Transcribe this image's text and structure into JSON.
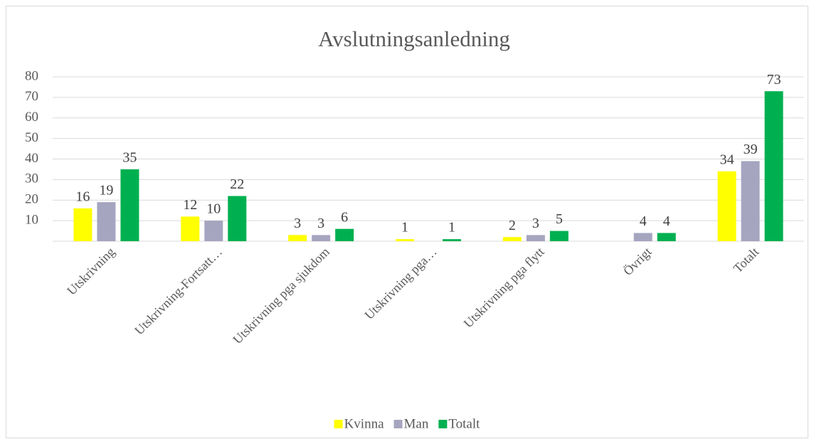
{
  "chart_data": {
    "type": "bar",
    "title": "Avslutningsanledning",
    "categories": [
      "Utskrivning",
      "Utskrivning-Fortsatt…",
      "Utskrivning pga sjukdom",
      "Utskrivning pga…",
      "Utskrivning pga flytt",
      "Övrigt",
      "Totalt"
    ],
    "series": [
      {
        "name": "Kvinna",
        "color": "#ffff00",
        "values": [
          16,
          12,
          3,
          1,
          2,
          null,
          34
        ]
      },
      {
        "name": "Man",
        "color": "#a5a5c0",
        "values": [
          19,
          10,
          3,
          null,
          3,
          4,
          39
        ]
      },
      {
        "name": "Totalt",
        "color": "#00b050",
        "values": [
          35,
          22,
          6,
          1,
          5,
          4,
          73
        ]
      }
    ],
    "ylim": [
      0,
      80
    ],
    "yticks": [
      10,
      20,
      30,
      40,
      50,
      60,
      70,
      80
    ],
    "grid": true,
    "legend": "bottom"
  }
}
